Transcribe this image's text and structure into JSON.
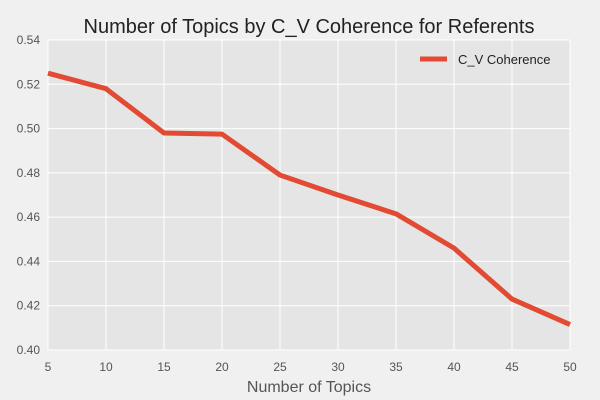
{
  "chart_data": {
    "type": "line",
    "title": "Number of Topics by C_V Coherence for Referents",
    "xlabel": "Number of Topics",
    "ylabel": "",
    "x": [
      5,
      10,
      15,
      20,
      25,
      30,
      35,
      40,
      45,
      50
    ],
    "series": [
      {
        "name": "C_V Coherence",
        "values": [
          0.525,
          0.518,
          0.498,
          0.4975,
          0.479,
          0.47,
          0.4615,
          0.446,
          0.423,
          0.4115
        ]
      }
    ],
    "xlim": [
      5,
      50
    ],
    "ylim": [
      0.4,
      0.54
    ],
    "xticks": [
      "5",
      "10",
      "15",
      "20",
      "25",
      "30",
      "35",
      "40",
      "45",
      "50"
    ],
    "yticks": [
      "0.40",
      "0.42",
      "0.44",
      "0.46",
      "0.48",
      "0.50",
      "0.52",
      "0.54"
    ],
    "grid": true,
    "legend_position": "top-right"
  },
  "colors": {
    "figure_background": "#f0f0f0",
    "plot_background": "#e5e5e5",
    "grid": "#ffffff",
    "series_line": "#e24a33"
  }
}
